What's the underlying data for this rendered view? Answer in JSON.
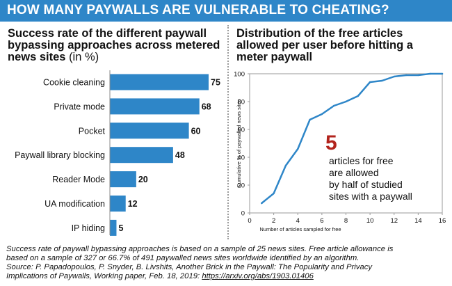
{
  "header": {
    "title": "HOW MANY PAYWALLS ARE VULNERABLE TO CHEATING?"
  },
  "left_panel": {
    "title": "Success rate of the different paywall bypassing approaches across metered news sites",
    "unit": "(in %)"
  },
  "right_panel": {
    "title": "Distribution of the free articles allowed per user before hitting a meter paywall"
  },
  "annotation": {
    "number": "5",
    "line1": "articles for free",
    "line2": "are allowed",
    "line3": "by half of studied",
    "line4": "sites with a paywall"
  },
  "footnote": {
    "line1": "Success rate of paywall bypassing approaches is based on a sample of 25 news sites. Free article allowance is",
    "line2": "based on a sample of 327 or 66.7% of 491 paywalled news sites worldwide identified by an algorithm.",
    "line3": "Source: P. Papadopoulos, P. Snyder, B. Livshits, Another Brick in the Paywall: The Popularity and Privacy",
    "line4": "Implications of Paywalls, Working paper, Feb. 18, 2019:",
    "link": "https://arxiv.org/abs/1903.01406"
  },
  "colors": {
    "banner": "#2e86c8",
    "bar": "#2e86c8",
    "line": "#2e86c8",
    "highlight": "#b2231c"
  },
  "chart_data": [
    {
      "type": "bar",
      "orientation": "horizontal",
      "title": "Success rate of the different paywall bypassing approaches across metered news sites (in %)",
      "categories": [
        "Cookie cleaning",
        "Private mode",
        "Pocket",
        "Paywall library blocking",
        "Reader Mode",
        "UA modification",
        "IP hiding"
      ],
      "values": [
        75,
        68,
        60,
        48,
        20,
        12,
        5
      ],
      "xlim": [
        0,
        75
      ]
    },
    {
      "type": "line",
      "title": "Distribution of the free articles allowed per user before hitting a meter paywall",
      "xlabel": "Number of articles sampled for free",
      "ylabel": "Cumulative % of paywalled news sites",
      "x": [
        1,
        2,
        3,
        4,
        5,
        6,
        7,
        8,
        9,
        10,
        11,
        12,
        13,
        14,
        15,
        16
      ],
      "y": [
        7,
        14,
        34,
        46,
        67,
        71,
        77,
        80,
        84,
        94,
        95,
        98,
        99,
        99,
        100,
        100
      ],
      "xlim": [
        0,
        16
      ],
      "ylim": [
        0,
        100
      ],
      "xticks": [
        0,
        2,
        4,
        6,
        8,
        10,
        12,
        14,
        16
      ],
      "yticks": [
        0,
        20,
        40,
        60,
        80,
        100
      ],
      "grid": false
    }
  ]
}
